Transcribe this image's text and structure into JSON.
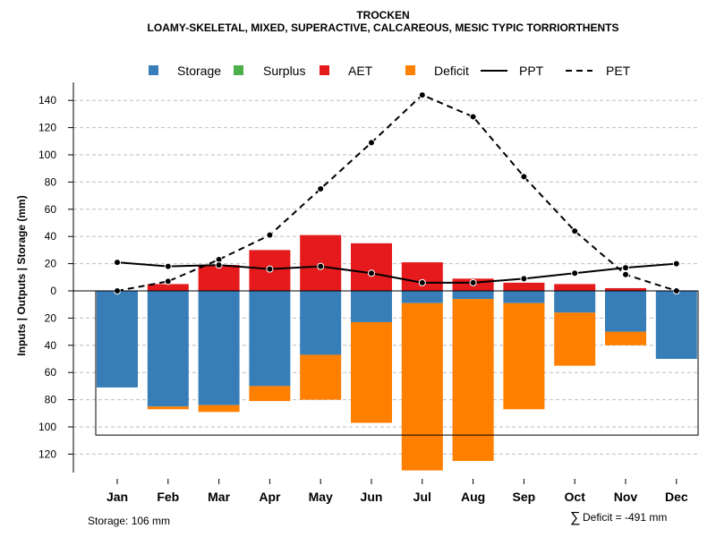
{
  "chart_data": {
    "type": "bar",
    "title": "TROCKEN",
    "subtitle": "LOAMY-SKELETAL, MIXED, SUPERACTIVE, CALCAREOUS, MESIC TYPIC TORRIORTHENTS",
    "ylabel": "Inputs | Outputs | Storage    (mm)",
    "ylim": [
      -132,
      145
    ],
    "yticks": [
      140,
      120,
      100,
      80,
      60,
      40,
      20,
      0,
      -20,
      -40,
      -60,
      -80,
      -100,
      -120
    ],
    "categories": [
      "Jan",
      "Feb",
      "Mar",
      "Apr",
      "May",
      "Jun",
      "Jul",
      "Aug",
      "Sep",
      "Oct",
      "Nov",
      "Dec"
    ],
    "legend": [
      {
        "label": "Storage",
        "kind": "box",
        "color": "#377EB8"
      },
      {
        "label": "Surplus",
        "kind": "box",
        "color": "#4DAF4A"
      },
      {
        "label": "AET",
        "kind": "box",
        "color": "#E41A1C"
      },
      {
        "label": "Deficit",
        "kind": "box",
        "color": "#FF7F00"
      },
      {
        "label": "PPT",
        "kind": "solid",
        "color": "#000000"
      },
      {
        "label": "PET",
        "kind": "dashed",
        "color": "#000000"
      }
    ],
    "series": [
      {
        "name": "Storage",
        "values": [
          71,
          85,
          84,
          70,
          47,
          23,
          9,
          6,
          9,
          16,
          30,
          50
        ]
      },
      {
        "name": "Surplus",
        "values": [
          0,
          0,
          0,
          0,
          0,
          0,
          0,
          0,
          0,
          0,
          0,
          0
        ]
      },
      {
        "name": "AET",
        "values": [
          0,
          5,
          19,
          30,
          41,
          35,
          21,
          9,
          6,
          5,
          2,
          0
        ]
      },
      {
        "name": "Deficit",
        "values": [
          0,
          2,
          5,
          11,
          33,
          74,
          123,
          119,
          78,
          39,
          10,
          0
        ]
      },
      {
        "name": "PPT",
        "values": [
          21,
          18,
          19,
          16,
          18,
          13,
          6,
          6,
          9,
          13,
          17,
          20
        ]
      },
      {
        "name": "PET",
        "values": [
          0,
          7,
          23,
          41,
          75,
          109,
          144,
          128,
          84,
          44,
          12,
          0
        ]
      }
    ],
    "storage_capacity": 106
  },
  "footer": {
    "storage_text": "Storage: 106 mm",
    "deficit_symbol": "∑",
    "deficit_text": "Deficit = -491 mm"
  },
  "colors": {
    "storage": "#377EB8",
    "surplus": "#4DAF4A",
    "aet": "#E41A1C",
    "deficit": "#FF7F00",
    "grid": "#BEBEBE"
  }
}
